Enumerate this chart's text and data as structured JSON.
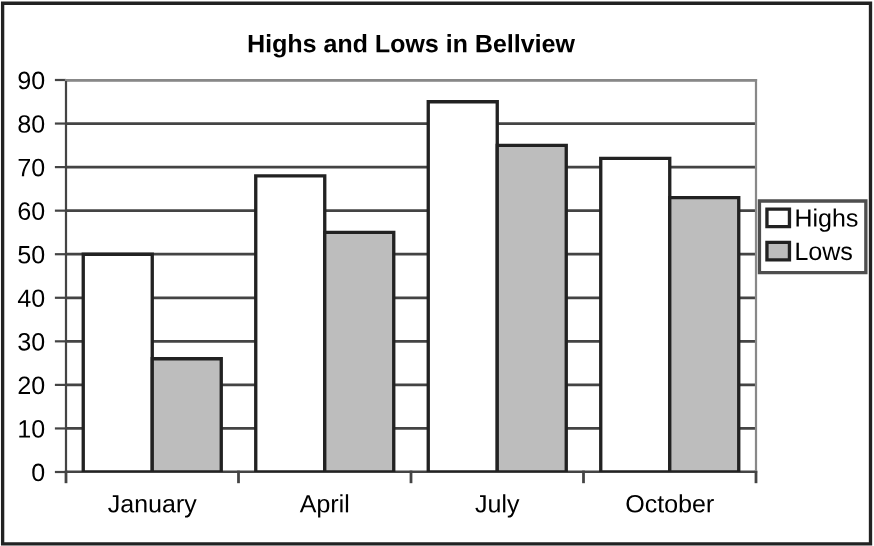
{
  "chart_data": {
    "type": "bar",
    "title": "Highs and Lows in Bellview",
    "categories": [
      "January",
      "April",
      "July",
      "October"
    ],
    "series": [
      {
        "name": "Highs",
        "color": "#ffffff",
        "values": [
          50,
          68,
          85,
          72
        ]
      },
      {
        "name": "Lows",
        "color": "#bdbdbd",
        "values": [
          26,
          55,
          75,
          63
        ]
      }
    ],
    "ylim": [
      0,
      90
    ],
    "yticks": [
      0,
      10,
      20,
      30,
      40,
      50,
      60,
      70,
      80,
      90
    ],
    "grid": "y",
    "legend": "right"
  }
}
